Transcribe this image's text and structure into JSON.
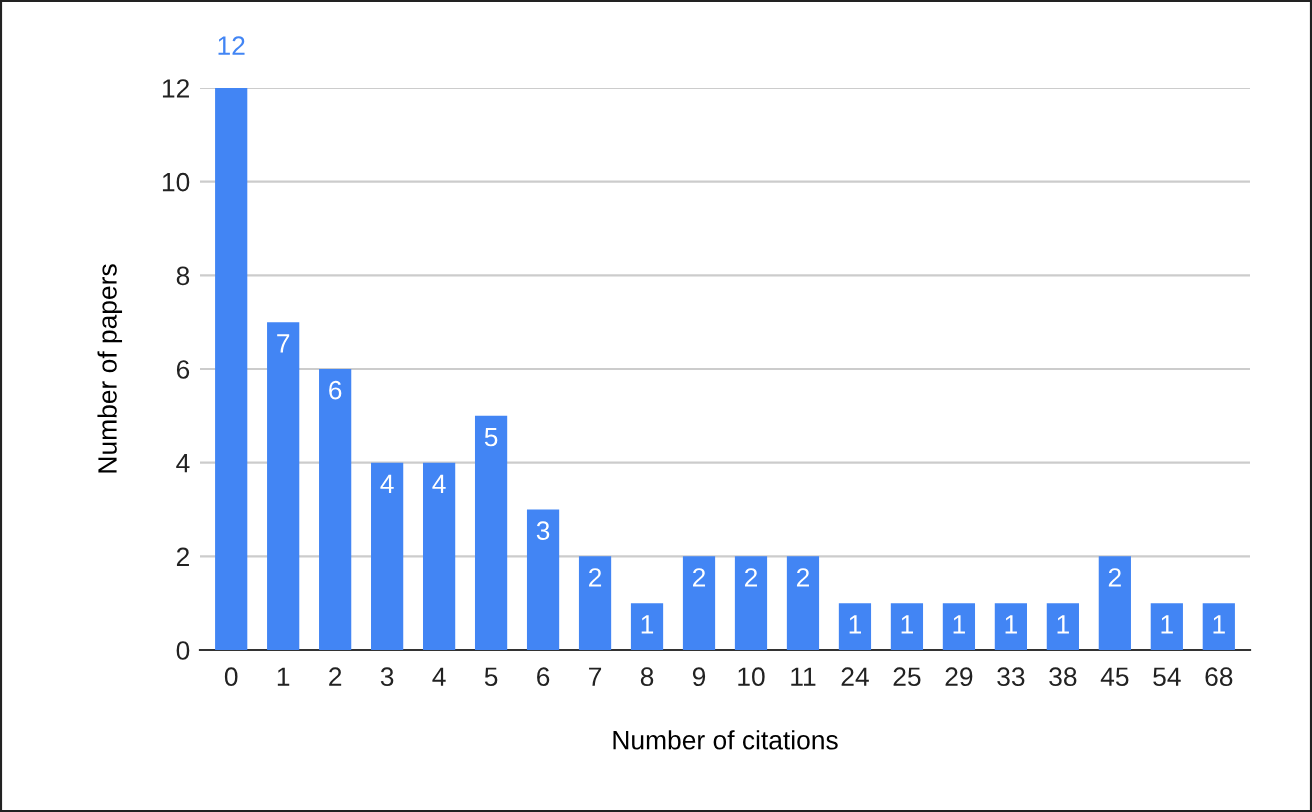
{
  "chart_data": {
    "type": "bar",
    "xlabel": "Number of citations",
    "ylabel": "Number of papers",
    "categories": [
      "0",
      "1",
      "2",
      "3",
      "4",
      "5",
      "6",
      "7",
      "8",
      "9",
      "10",
      "11",
      "24",
      "25",
      "29",
      "33",
      "38",
      "45",
      "54",
      "68"
    ],
    "values": [
      12,
      7,
      6,
      4,
      4,
      5,
      3,
      2,
      1,
      2,
      2,
      2,
      1,
      1,
      1,
      1,
      1,
      2,
      1,
      1
    ],
    "color": "#4285f4",
    "ylim": [
      0,
      12
    ],
    "yticks": [
      0,
      2,
      4,
      6,
      8,
      10,
      12
    ],
    "grid": "y",
    "data_labels": true
  }
}
